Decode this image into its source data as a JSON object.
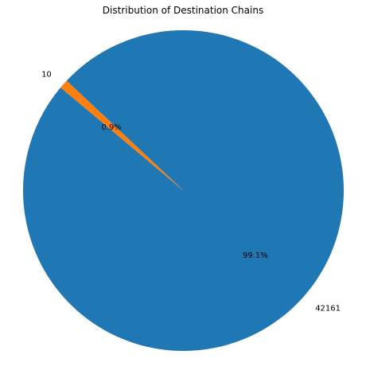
{
  "chart_data": {
    "type": "pie",
    "title": "Distribution of Destination Chains",
    "slices": [
      {
        "label": "42161",
        "value": 99.1,
        "pct_label": "99.1%",
        "color": "#1f77b4"
      },
      {
        "label": "10",
        "value": 0.9,
        "pct_label": "0.9%",
        "color": "#ff7f0e"
      }
    ],
    "start_angle_deg": 140,
    "counterclockwise": true,
    "legend": "none"
  }
}
